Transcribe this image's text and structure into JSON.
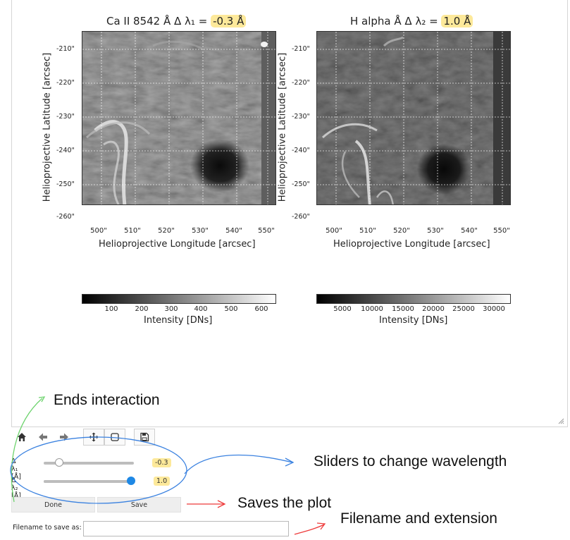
{
  "panels": [
    {
      "title_prefix": "Ca II 8542 Å Δ λ₁ =",
      "title_value": "-0.3 Å",
      "y_ticks": [
        "-210\"",
        "-220\"",
        "-230\"",
        "-240\"",
        "-250\"",
        "-260\""
      ],
      "x_ticks": [
        "500\"",
        "510\"",
        "520\"",
        "530\"",
        "540\"",
        "550\""
      ],
      "xlabel": "Helioprojective Longitude [arcsec]",
      "ylabel": "Helioprojective Latitude [arcsec]",
      "colorbar": {
        "ticks": [
          "100",
          "200",
          "300",
          "400",
          "500",
          "600"
        ],
        "label": "Intensity [DNs]"
      }
    },
    {
      "title_prefix": "H alpha Å Δ λ₂ =",
      "title_value": "1.0 Å",
      "y_ticks": [
        "-210\"",
        "-220\"",
        "-230\"",
        "-240\"",
        "-250\"",
        "-260\""
      ],
      "x_ticks": [
        "500\"",
        "510\"",
        "520\"",
        "530\"",
        "540\"",
        "550\""
      ],
      "xlabel": "Helioprojective Longitude [arcsec]",
      "ylabel": "Helioprojective Latitude [arcsec]",
      "colorbar": {
        "ticks": [
          "5000",
          "10000",
          "15000",
          "20000",
          "25000",
          "30000"
        ],
        "label": "Intensity [DNs]"
      }
    }
  ],
  "toolbar": {
    "icons": [
      "home-icon",
      "back-arrow-icon",
      "forward-arrow-icon",
      "pan-icon",
      "zoom-rect-icon",
      "save-icon"
    ]
  },
  "sliders": [
    {
      "label": "Δ λ₁ [Å]",
      "value": "-0.3",
      "fraction": 0.17,
      "knob_color": "#ffffff"
    },
    {
      "label": "Δ λ₂ [Å]",
      "value": "1.0",
      "fraction": 0.97,
      "knob_color": "#1e88e5"
    }
  ],
  "buttons": {
    "done": "Done",
    "save": "Save"
  },
  "filename": {
    "label": "Filename to save as:",
    "value": ""
  },
  "annotations": {
    "ends_interaction": "Ends interaction",
    "sliders": "Sliders to change wavelength",
    "saves": "Saves the plot",
    "filename": "Filename and extension"
  },
  "colors": {
    "highlight": "#fde99a",
    "blue": "#3b82e0",
    "green": "#6dd36d",
    "red": "#ee3b3b"
  }
}
